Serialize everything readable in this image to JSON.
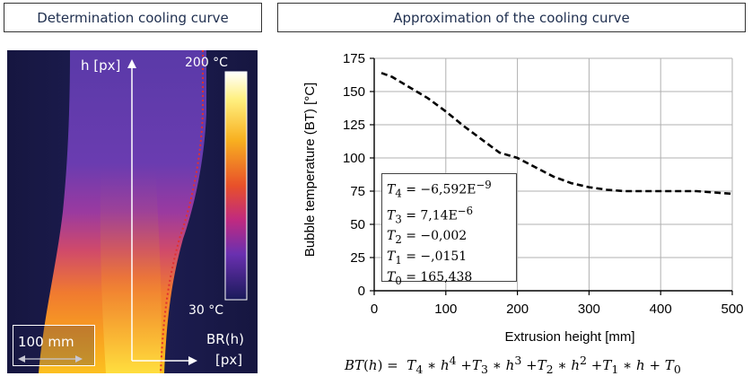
{
  "panels": {
    "left_title": "Determination cooling curve",
    "right_title": "Approximation of the cooling curve"
  },
  "thermal_image": {
    "h_axis_label": "h [px]",
    "scale_max": "200 °C",
    "scale_min": "30 °C",
    "scalebar_label": "100 mm",
    "br_label": "BR(h)",
    "px_label": "[px]"
  },
  "colors": {
    "curve": "#000000",
    "grid": "#b0b0b0",
    "profile_edge": "#e03030"
  },
  "chart_data": {
    "type": "line",
    "xlabel": "Extrusion height   [mm]",
    "ylabel": "Bubble temperature (BT)   [°C]",
    "xlim": [
      0,
      500
    ],
    "ylim": [
      0,
      175
    ],
    "xticks": [
      0,
      100,
      200,
      300,
      400,
      500
    ],
    "yticks": [
      0,
      25,
      50,
      75,
      100,
      125,
      150,
      175
    ],
    "grid": true,
    "line_style": "dashed",
    "series": [
      {
        "x": [
          10,
          25,
          50,
          75,
          100,
          125,
          150,
          175,
          200,
          225,
          250,
          275,
          300,
          325,
          350,
          375,
          400,
          425,
          450,
          475,
          500
        ],
        "y": [
          164,
          161,
          153,
          145,
          135,
          124,
          114,
          104,
          100,
          93,
          86,
          81,
          78,
          76,
          75,
          75,
          75,
          75,
          75,
          74,
          73
        ]
      }
    ],
    "coefficients": [
      {
        "name": "T",
        "sub": "4",
        "value": "−6,592E",
        "sup": "−9"
      },
      {
        "name": "T",
        "sub": "3",
        "value": "7,14E",
        "sup": "−6"
      },
      {
        "name": "T",
        "sub": "2",
        "value": "−0,002",
        "sup": ""
      },
      {
        "name": "T",
        "sub": "1",
        "value": "−,0151",
        "sup": ""
      },
      {
        "name": "T",
        "sub": "0",
        "value": "165,438",
        "sup": ""
      }
    ],
    "formula": "BT(h) = T4 * h^4 + T3 * h^3 + T2 * h^2 + T1 * h + T0"
  }
}
